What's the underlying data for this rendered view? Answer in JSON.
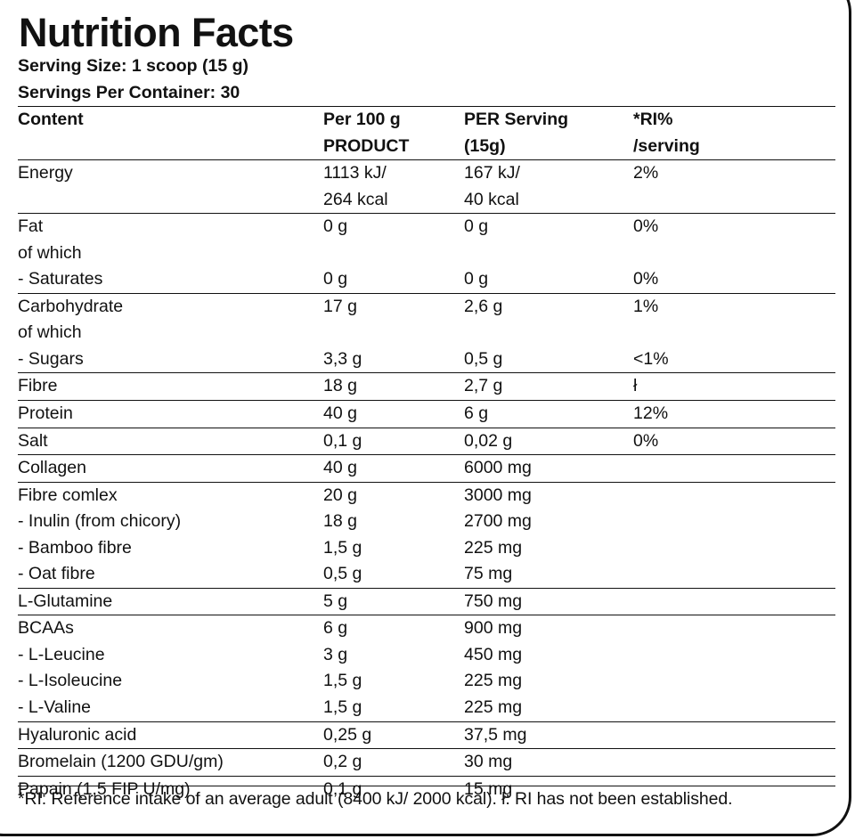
{
  "title": "Nutrition Facts",
  "serving_size": "Serving Size: 1 scoop (15 g)",
  "servings_per_container": "Servings Per Container: 30",
  "header": {
    "content": "Content",
    "per100_line1": "Per 100 g",
    "per100_line2": "PRODUCT",
    "perserving_line1": "PER Serving",
    "perserving_line2": "(15g)",
    "ri_line1": "*RI%",
    "ri_line2": "/serving"
  },
  "groups": [
    {
      "rows": [
        {
          "name": "Energy",
          "per100": "1113 kJ/",
          "serving": "167 kJ/",
          "ri": "2%"
        },
        {
          "name": "",
          "per100": "264 kcal",
          "serving": "40 kcal",
          "ri": ""
        }
      ]
    },
    {
      "rows": [
        {
          "name": "Fat",
          "per100": "0 g",
          "serving": "0 g",
          "ri": "0%"
        },
        {
          "name": "of which",
          "per100": "",
          "serving": "",
          "ri": ""
        },
        {
          "name": "- Saturates",
          "per100": "0 g",
          "serving": "0 g",
          "ri": "0%"
        }
      ]
    },
    {
      "rows": [
        {
          "name": "Carbohydrate",
          "per100": "17 g",
          "serving": "2,6 g",
          "ri": "1%"
        },
        {
          "name": "of which",
          "per100": "",
          "serving": "",
          "ri": ""
        },
        {
          "name": "- Sugars",
          "per100": "3,3 g",
          "serving": "0,5 g",
          "ri": "<1%"
        }
      ]
    },
    {
      "rows": [
        {
          "name": "Fibre",
          "per100": "18 g",
          "serving": "2,7 g",
          "ri": "ł"
        }
      ]
    },
    {
      "rows": [
        {
          "name": "Protein",
          "per100": "40 g",
          "serving": "6 g",
          "ri": "12%"
        }
      ]
    },
    {
      "rows": [
        {
          "name": "Salt",
          "per100": "0,1 g",
          "serving": "0,02 g",
          "ri": "0%"
        }
      ]
    },
    {
      "rows": [
        {
          "name": "Collagen",
          "per100": "40 g",
          "serving": "6000 mg",
          "ri": ""
        }
      ]
    },
    {
      "rows": [
        {
          "name": "Fibre comlex",
          "per100": "20 g",
          "serving": "3000 mg",
          "ri": ""
        },
        {
          "name": "- Inulin (from chicory)",
          "per100": "18 g",
          "serving": "2700 mg",
          "ri": ""
        },
        {
          "name": "- Bamboo fibre",
          "per100": "1,5 g",
          "serving": "225 mg",
          "ri": ""
        },
        {
          "name": "- Oat fibre",
          "per100": "0,5 g",
          "serving": "75 mg",
          "ri": ""
        }
      ]
    },
    {
      "rows": [
        {
          "name": "L-Glutamine",
          "per100": "5 g",
          "serving": "750 mg",
          "ri": ""
        }
      ]
    },
    {
      "rows": [
        {
          "name": "BCAAs",
          "per100": "6 g",
          "serving": "900 mg",
          "ri": ""
        },
        {
          "name": "- L-Leucine",
          "per100": "3 g",
          "serving": "450 mg",
          "ri": ""
        },
        {
          "name": "- L-Isoleucine",
          "per100": "1,5 g",
          "serving": "225 mg",
          "ri": ""
        },
        {
          "name": "- L-Valine",
          "per100": "1,5 g",
          "serving": "225 mg",
          "ri": ""
        }
      ]
    },
    {
      "rows": [
        {
          "name": "Hyaluronic acid",
          "per100": "0,25 g",
          "serving": "37,5 mg",
          "ri": ""
        }
      ]
    },
    {
      "rows": [
        {
          "name": "Bromelain (1200 GDU/gm)",
          "per100": "0,2 g",
          "serving": "30 mg",
          "ri": ""
        }
      ]
    },
    {
      "rows": [
        {
          "name": "Papain (1,5 FIP U/mg)",
          "per100": "0,1 g",
          "serving": "15 mg",
          "ri": ""
        }
      ]
    }
  ],
  "footnote": "*RI: Reference intake of an average adult (8400 kJ/ 2000 kcal). ł: RI has not been established."
}
